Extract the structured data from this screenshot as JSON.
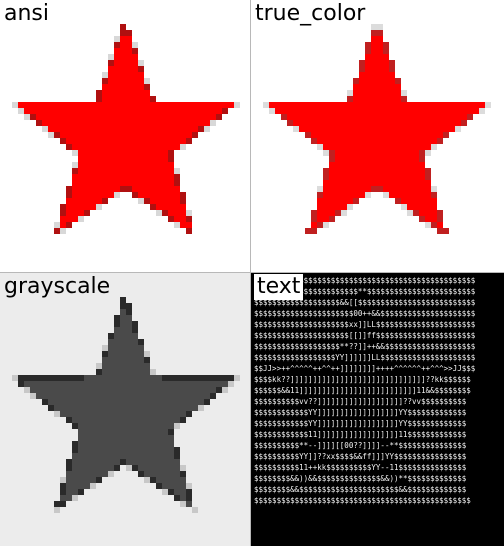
{
  "panels": [
    {
      "id": "ansi",
      "label": "ansi",
      "fill": "#ff0000",
      "edge": "#b01010",
      "halo": "#d8d8d8"
    },
    {
      "id": "true_color",
      "label": "true_color",
      "fill": "#ff0000",
      "edge": "#c02020",
      "halo": "#dcdcdc"
    },
    {
      "id": "grayscale",
      "label": "grayscale",
      "fill": "#4a4a4a",
      "edge": "#2a2a2a",
      "halo": "#c8c8c8"
    },
    {
      "id": "text",
      "label": "text",
      "ascii_lines": [
        "$$$$$$$$$$$$$$$$$$$$$$$$$$$$$$$$$$$$$$$$$$$$$$$$$",
        "$$$$$$$$$$$$$$$$$$$$$$$**$$$$$$$$$$$$$$$$$$$$$$$$",
        "$$$$$$$$$$$$$$$$$$$&&[[$$$$$$$$$$$$$$$$$$$$$$$$$$",
        "$$$$$$$$$$$$$$$$$$$$$$00++&&$$$$$$$$$$$$$$$$$$$$$",
        "$$$$$$$$$$$$$$$$$$$$$xx]]LL$$$$$$$$$$$$$$$$$$$$$$",
        "$$$$$$$$$$$$$$$$$$$$$[[]]ff$$$$$$$$$$$$$$$$$$$$$$",
        "$$$$$$$$$$$$$$$$$$$**??]]++&&$$$$$$$$$$$$$$$$$$$$",
        "$$$$$$$$$$$$$$$$$$YY]]]]]]LL$$$$$$$$$$$$$$$$$$$$$",
        "$$JJ>>++^^^^^++^^++]]]]]]]]++++^^^^^^++^^^>>JJ$$$",
        "$$$$kk??]]]]]]]]]]]]]]]]]]]]]]]]]]]]]]??kk$$$$$$",
        "$$$$$$&&11]]]]]]]]]]]]]]]]]]]]]]]]]]11&&$$$$$$$$",
        "$$$$$$$$$$vv??]]]]]]]]]]]]]]]]]]]??vv$$$$$$$$$$",
        "$$$$$$$$$$$$YY]]]]]]]]]]]]]]]]]]YY$$$$$$$$$$$$$",
        "$$$$$$$$$$$$YY]]]]]]]]]]]]]]]]]]YY$$$$$$$$$$$$$",
        "$$$$$$$$$$$$11]]]]]]]]]]]]]]]]]]11$$$$$$$$$$$$$",
        "$$$$$$$$$$**--]]]][[00??]]]]--**$$$$$$$$$$$$$$$",
        "$$$$$$$$$$YY]]??xx$$$$&&ff]]]YY$$$$$$$$$$$$$$$$",
        "$$$$$$$$$$11++kk$$$$$$$$$$YY--11$$$$$$$$$$$$$$$",
        "$$$$$$$$&&))&&$$$$$$$$$$$$$$&&))**$$$$$$$$$$$$$",
        "$$$$$$$$&&$$$$$$$$$$$$$$$$$$$$$$&&$$$$$$$$$$$$$",
        "$$$$$$$$$$$$$$$$$$$$$$$$$$$$$$$$$$$$$$$$$$$$$$$$"
      ]
    }
  ]
}
